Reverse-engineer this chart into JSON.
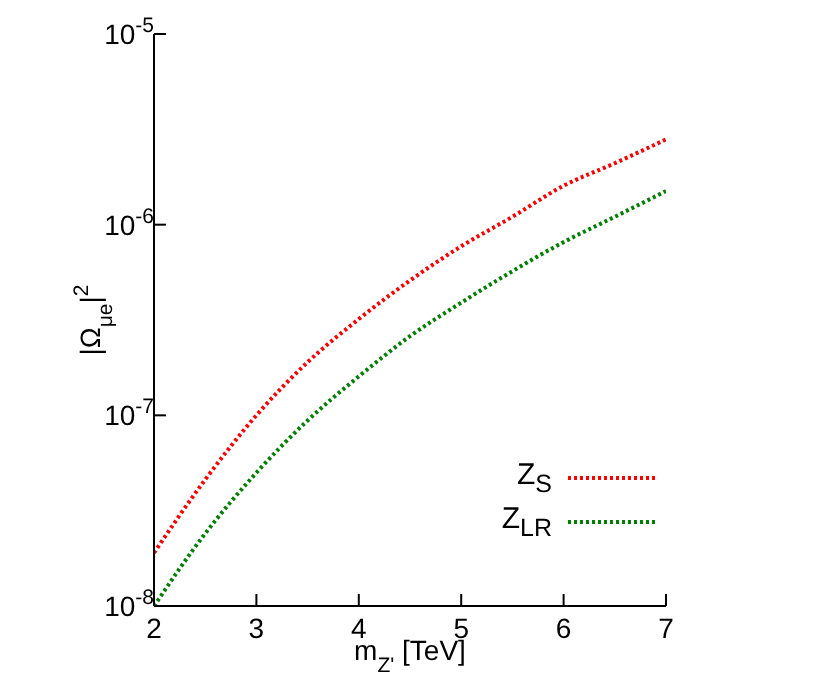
{
  "chart_data": {
    "type": "line",
    "xlabel": "m$_{Z'}$ [TeV]",
    "ylabel": "|Ω$_{μe}$|$^{2}$",
    "x": [
      2,
      2.5,
      3,
      3.5,
      4,
      4.5,
      5,
      5.5,
      6,
      6.5,
      7
    ],
    "series": [
      {
        "name": "Z$_{S}$",
        "color": "#ff0000",
        "values": [
          1.9e-08,
          4.6e-08,
          1e-07,
          1.9e-07,
          3.2e-07,
          5.1e-07,
          7.7e-07,
          1.1e-06,
          1.6e-06,
          2.1e-06,
          2.8e-06
        ]
      },
      {
        "name": "Z$_{LR}$",
        "color": "#008000",
        "values": [
          1e-08,
          2.4e-08,
          5e-08,
          9.4e-08,
          1.6e-07,
          2.6e-07,
          3.9e-07,
          5.7e-07,
          8.1e-07,
          1.1e-06,
          1.5e-06
        ]
      }
    ],
    "xlim": [
      2,
      7
    ],
    "xticks": [
      2,
      3,
      4,
      5,
      6,
      7
    ],
    "ylim": [
      1e-08,
      1e-05
    ],
    "yticks": [
      {
        "value": 1e-08,
        "label": "10$^{-8}$"
      },
      {
        "value": 1e-07,
        "label": "10$^{-7}$"
      },
      {
        "value": 1e-06,
        "label": "10$^{-6}$"
      },
      {
        "value": 1e-05,
        "label": "10$^{-5}$"
      }
    ],
    "log": "y",
    "grid": false,
    "legend": "bottom right",
    "marker": "none",
    "line_style": "dotted"
  }
}
